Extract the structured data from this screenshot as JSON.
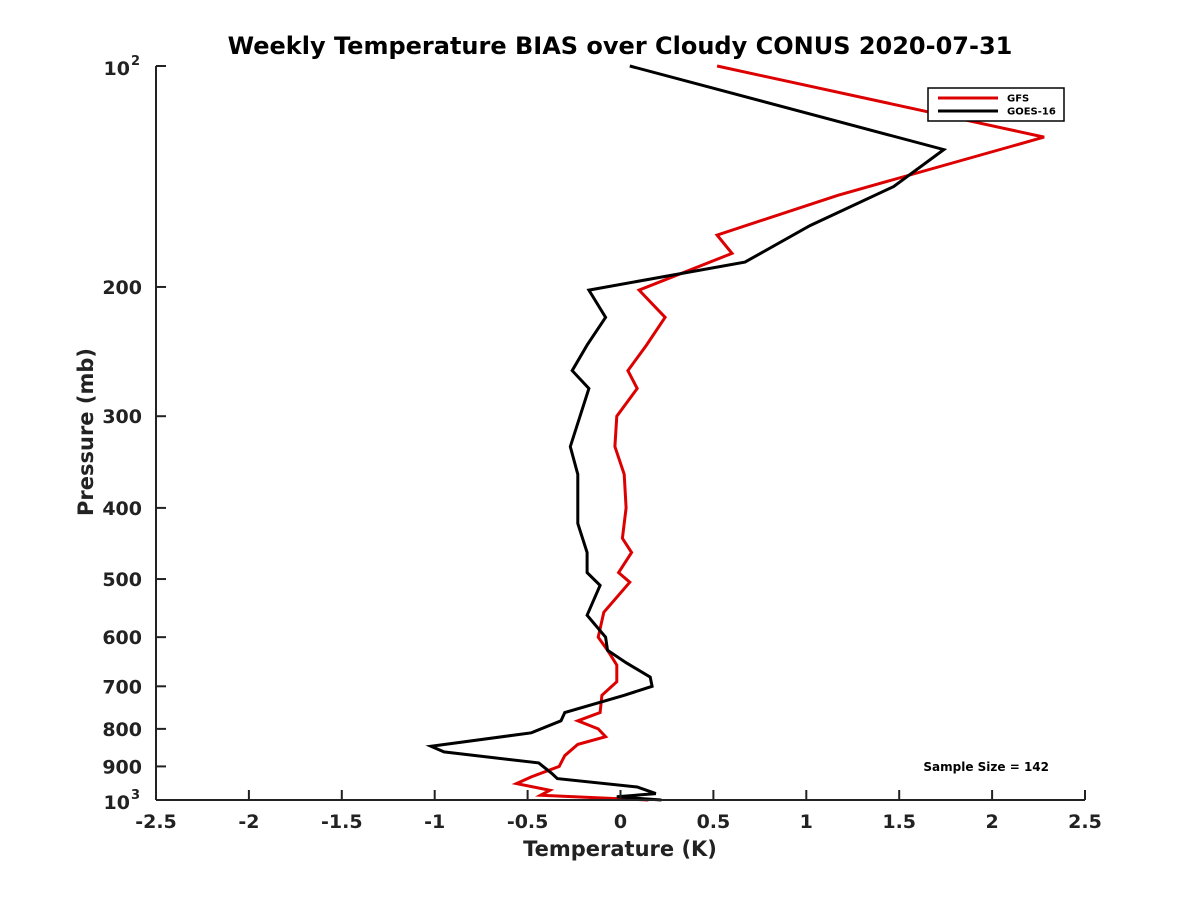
{
  "chart_data": {
    "type": "line",
    "title": "Weekly Temperature BIAS over Cloudy CONUS 2020-07-31",
    "xlabel": "Temperature (K)",
    "ylabel": "Pressure (mb)",
    "xlim": [
      -2.5,
      2.5
    ],
    "ylim": [
      1000,
      100
    ],
    "yscale": "log",
    "y_reversed": true,
    "grid": false,
    "legend_position": "top-right",
    "x_ticks": [
      "-2.5",
      "-2",
      "-1.5",
      "-1",
      "-0.5",
      "0",
      "0.5",
      "1",
      "1.5",
      "2",
      "2.5"
    ],
    "x_tick_values": [
      -2.5,
      -2,
      -1.5,
      -1,
      -0.5,
      0,
      0.5,
      1,
      1.5,
      2,
      2.5
    ],
    "y_ticks": [
      {
        "value": 100,
        "base": "10",
        "exp": "2"
      },
      {
        "value": 200,
        "label": "200"
      },
      {
        "value": 300,
        "label": "300"
      },
      {
        "value": 400,
        "label": "400"
      },
      {
        "value": 500,
        "label": "500"
      },
      {
        "value": 600,
        "label": "600"
      },
      {
        "value": 700,
        "label": "700"
      },
      {
        "value": 800,
        "label": "800"
      },
      {
        "value": 900,
        "label": "900"
      },
      {
        "value": 1000,
        "base": "10",
        "exp": "3"
      }
    ],
    "annotation": "Sample Size = 142",
    "series": [
      {
        "name": "GFS",
        "color": "#dd0000",
        "points": [
          [
            0.52,
            100
          ],
          [
            2.28,
            125
          ],
          [
            1.17,
            150
          ],
          [
            0.52,
            170
          ],
          [
            0.6,
            180
          ],
          [
            0.1,
            202
          ],
          [
            0.24,
            220
          ],
          [
            0.14,
            240
          ],
          [
            0.04,
            260
          ],
          [
            0.09,
            275
          ],
          [
            -0.02,
            300
          ],
          [
            -0.03,
            330
          ],
          [
            0.02,
            360
          ],
          [
            0.03,
            400
          ],
          [
            0.01,
            440
          ],
          [
            0.06,
            460
          ],
          [
            -0.01,
            490
          ],
          [
            0.05,
            505
          ],
          [
            -0.09,
            555
          ],
          [
            -0.12,
            600
          ],
          [
            -0.07,
            625
          ],
          [
            -0.02,
            655
          ],
          [
            -0.02,
            690
          ],
          [
            -0.1,
            720
          ],
          [
            -0.11,
            760
          ],
          [
            -0.23,
            780
          ],
          [
            -0.12,
            800
          ],
          [
            -0.08,
            820
          ],
          [
            -0.23,
            840
          ],
          [
            -0.3,
            870
          ],
          [
            -0.33,
            900
          ],
          [
            -0.48,
            930
          ],
          [
            -0.56,
            950
          ],
          [
            -0.38,
            970
          ],
          [
            -0.43,
            985
          ],
          [
            0.15,
            1000
          ]
        ]
      },
      {
        "name": "GOES-16",
        "color": "#000000",
        "points": [
          [
            0.05,
            100
          ],
          [
            1.74,
            130
          ],
          [
            1.47,
            146
          ],
          [
            1.02,
            165
          ],
          [
            0.67,
            185
          ],
          [
            -0.17,
            202
          ],
          [
            -0.08,
            220
          ],
          [
            -0.18,
            240
          ],
          [
            -0.26,
            260
          ],
          [
            -0.17,
            275
          ],
          [
            -0.27,
            330
          ],
          [
            -0.23,
            360
          ],
          [
            -0.23,
            420
          ],
          [
            -0.18,
            460
          ],
          [
            -0.18,
            490
          ],
          [
            -0.11,
            510
          ],
          [
            -0.18,
            560
          ],
          [
            -0.08,
            600
          ],
          [
            -0.07,
            625
          ],
          [
            0.03,
            650
          ],
          [
            0.16,
            680
          ],
          [
            0.17,
            700
          ],
          [
            0.02,
            720
          ],
          [
            -0.3,
            760
          ],
          [
            -0.32,
            780
          ],
          [
            -0.48,
            810
          ],
          [
            -1.02,
            845
          ],
          [
            -0.95,
            860
          ],
          [
            -0.44,
            890
          ],
          [
            -0.37,
            920
          ],
          [
            -0.34,
            935
          ],
          [
            0.09,
            960
          ],
          [
            0.19,
            980
          ],
          [
            -0.02,
            990
          ],
          [
            0.22,
            1000
          ]
        ]
      }
    ]
  }
}
